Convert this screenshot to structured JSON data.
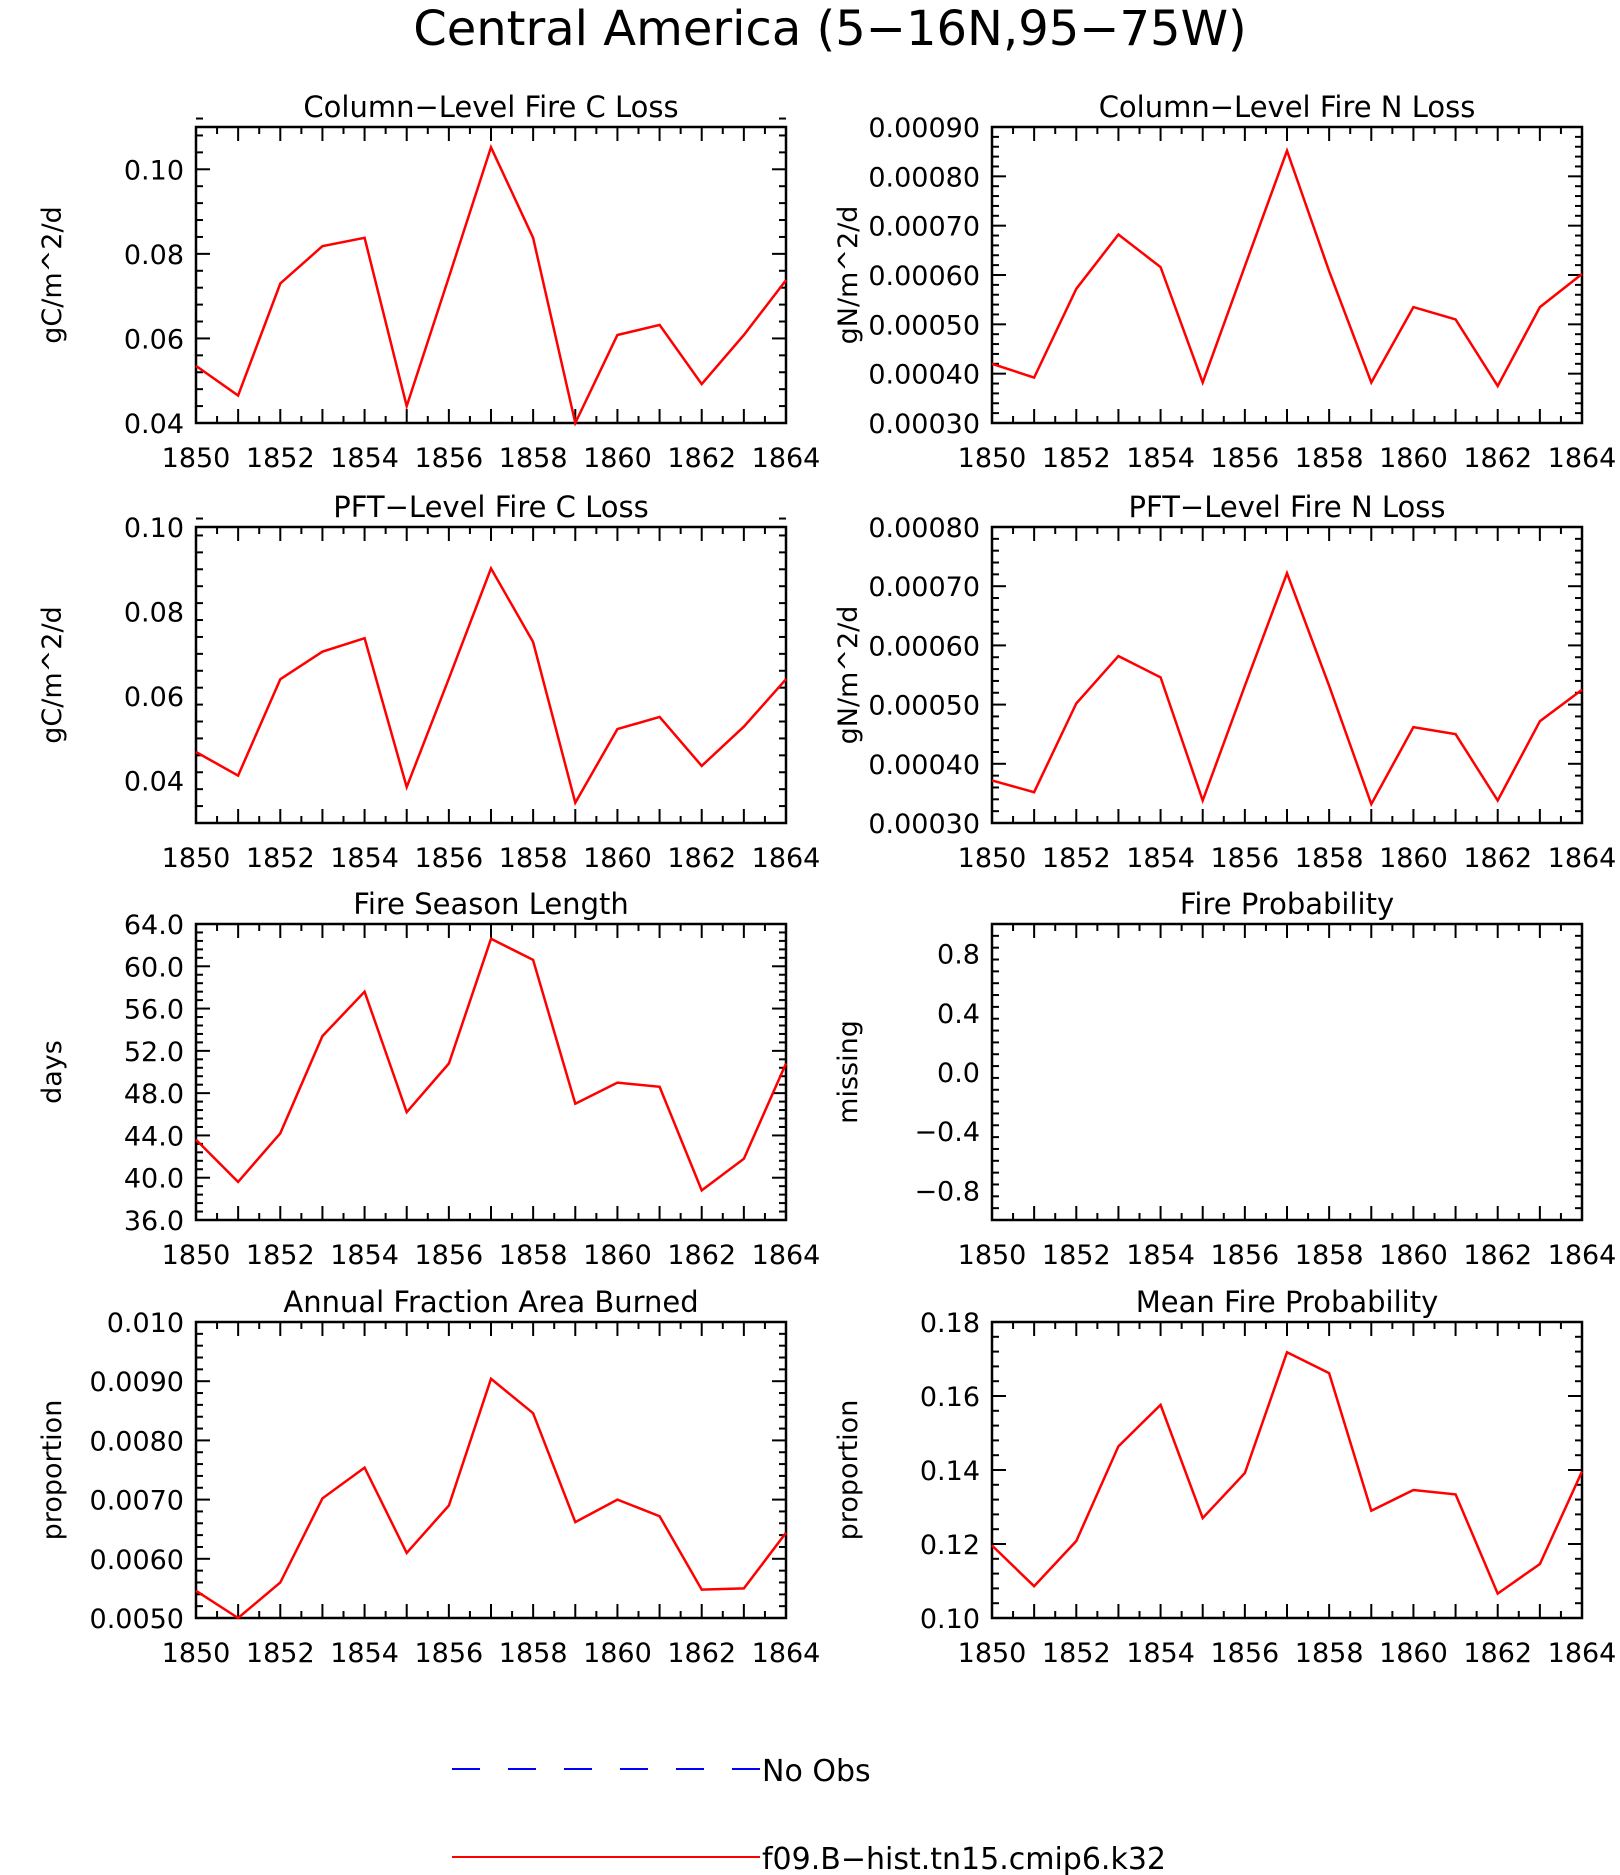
{
  "title": "Central America (5−16N,95−75W)",
  "colors": {
    "model": "#ff0000",
    "obs": "#0000ff"
  },
  "legend": {
    "obs_label": "No Obs",
    "model_label": "f09.B−hist.tn15.cmip6.k32"
  },
  "chart_data": [
    {
      "type": "line",
      "title": "Column−Level Fire C Loss",
      "ylabel": "gC/m^2/d",
      "x": [
        1850,
        1851,
        1852,
        1853,
        1854,
        1855,
        1856,
        1857,
        1858,
        1859,
        1860,
        1861,
        1862,
        1863,
        1864
      ],
      "xlim": [
        1850,
        1864
      ],
      "xticks": [
        "1850",
        "1852",
        "1854",
        "1856",
        "1858",
        "1860",
        "1862",
        "1864"
      ],
      "ylim": [
        0.04,
        0.11
      ],
      "yticks": [
        "0.04",
        "0.06",
        "0.08",
        "0.10"
      ],
      "series": [
        {
          "name": "f09.B−hist.tn15.cmip6.k32",
          "values": [
            0.0535,
            0.0465,
            0.073,
            0.0818,
            0.0838,
            0.044,
            0.0745,
            0.1052,
            0.0838,
            0.04,
            0.0608,
            0.0632,
            0.0492,
            0.0608,
            0.0738
          ]
        }
      ]
    },
    {
      "type": "line",
      "title": "Column−Level Fire N Loss",
      "ylabel": "gN/m^2/d",
      "x": [
        1850,
        1851,
        1852,
        1853,
        1854,
        1855,
        1856,
        1857,
        1858,
        1859,
        1860,
        1861,
        1862,
        1863,
        1864
      ],
      "xlim": [
        1850,
        1864
      ],
      "xticks": [
        "1850",
        "1852",
        "1854",
        "1856",
        "1858",
        "1860",
        "1862",
        "1864"
      ],
      "ylim": [
        0.0003,
        0.0009
      ],
      "yticks": [
        "0.00030",
        "0.00040",
        "0.00050",
        "0.00060",
        "0.00070",
        "0.00080",
        "0.00090"
      ],
      "series": [
        {
          "name": "f09.B−hist.tn15.cmip6.k32",
          "values": [
            0.00042,
            0.000392,
            0.000572,
            0.000682,
            0.000616,
            0.000382,
            0.000618,
            0.000852,
            0.000608,
            0.000382,
            0.000535,
            0.00051,
            0.000375,
            0.000535,
            0.000602
          ]
        }
      ]
    },
    {
      "type": "line",
      "title": "PFT−Level Fire C Loss",
      "ylabel": "gC/m^2/d",
      "x": [
        1850,
        1851,
        1852,
        1853,
        1854,
        1855,
        1856,
        1857,
        1858,
        1859,
        1860,
        1861,
        1862,
        1863,
        1864
      ],
      "xlim": [
        1850,
        1864
      ],
      "xticks": [
        "1850",
        "1852",
        "1854",
        "1856",
        "1858",
        "1860",
        "1862",
        "1864"
      ],
      "ylim": [
        0.03,
        0.1
      ],
      "yticks": [
        "0.04",
        "0.06",
        "0.08",
        "0.10"
      ],
      "series": [
        {
          "name": "f09.B−hist.tn15.cmip6.k32",
          "values": [
            0.0468,
            0.0412,
            0.064,
            0.0705,
            0.0737,
            0.0385,
            0.0642,
            0.0902,
            0.0728,
            0.0348,
            0.0522,
            0.0551,
            0.0435,
            0.0528,
            0.064
          ]
        }
      ]
    },
    {
      "type": "line",
      "title": "PFT−Level Fire N Loss",
      "ylabel": "gN/m^2/d",
      "x": [
        1850,
        1851,
        1852,
        1853,
        1854,
        1855,
        1856,
        1857,
        1858,
        1859,
        1860,
        1861,
        1862,
        1863,
        1864
      ],
      "xlim": [
        1850,
        1864
      ],
      "xticks": [
        "1850",
        "1852",
        "1854",
        "1856",
        "1858",
        "1860",
        "1862",
        "1864"
      ],
      "ylim": [
        0.0003,
        0.0008
      ],
      "yticks": [
        "0.00030",
        "0.00040",
        "0.00050",
        "0.00060",
        "0.00070",
        "0.00080"
      ],
      "series": [
        {
          "name": "f09.B−hist.tn15.cmip6.k32",
          "values": [
            0.000372,
            0.000352,
            0.000502,
            0.000582,
            0.000546,
            0.000338,
            0.000532,
            0.000722,
            0.000532,
            0.000332,
            0.000462,
            0.00045,
            0.000338,
            0.000472,
            0.000525
          ]
        }
      ]
    },
    {
      "type": "line",
      "title": "Fire Season Length",
      "ylabel": "days",
      "x": [
        1850,
        1851,
        1852,
        1853,
        1854,
        1855,
        1856,
        1857,
        1858,
        1859,
        1860,
        1861,
        1862,
        1863,
        1864
      ],
      "xlim": [
        1850,
        1864
      ],
      "xticks": [
        "1850",
        "1852",
        "1854",
        "1856",
        "1858",
        "1860",
        "1862",
        "1864"
      ],
      "ylim": [
        36,
        64
      ],
      "yticks": [
        "36.0",
        "40.0",
        "44.0",
        "48.0",
        "52.0",
        "56.0",
        "60.0",
        "64.0"
      ],
      "series": [
        {
          "name": "f09.B−hist.tn15.cmip6.k32",
          "values": [
            43.6,
            39.6,
            44.2,
            53.4,
            57.6,
            46.2,
            50.8,
            62.6,
            60.6,
            47.0,
            49.0,
            48.6,
            38.8,
            41.8,
            50.8
          ]
        }
      ]
    },
    {
      "type": "line",
      "title": "Fire Probability",
      "ylabel": "missing",
      "x": [],
      "xlim": [
        1850,
        1864
      ],
      "xticks": [
        "1850",
        "1852",
        "1854",
        "1856",
        "1858",
        "1860",
        "1862",
        "1864"
      ],
      "ylim": [
        -1.0,
        1.0
      ],
      "yticks": [
        "−0.8",
        "−0.4",
        "0.0",
        "0.4",
        "0.8"
      ],
      "series": []
    },
    {
      "type": "line",
      "title": "Annual Fraction Area Burned",
      "ylabel": "proportion",
      "x": [
        1850,
        1851,
        1852,
        1853,
        1854,
        1855,
        1856,
        1857,
        1858,
        1859,
        1860,
        1861,
        1862,
        1863,
        1864
      ],
      "xlim": [
        1850,
        1864
      ],
      "xticks": [
        "1850",
        "1852",
        "1854",
        "1856",
        "1858",
        "1860",
        "1862",
        "1864"
      ],
      "ylim": [
        0.005,
        0.01
      ],
      "yticks": [
        "0.0050",
        "0.0060",
        "0.0070",
        "0.0080",
        "0.0090",
        "0.010"
      ],
      "series": [
        {
          "name": "f09.B−hist.tn15.cmip6.k32",
          "values": [
            0.00546,
            0.005,
            0.0056,
            0.00702,
            0.00754,
            0.0061,
            0.0069,
            0.00904,
            0.00846,
            0.00662,
            0.007,
            0.00672,
            0.00548,
            0.0055,
            0.00644
          ]
        }
      ]
    },
    {
      "type": "line",
      "title": "Mean Fire Probability",
      "ylabel": "proportion",
      "x": [
        1850,
        1851,
        1852,
        1853,
        1854,
        1855,
        1856,
        1857,
        1858,
        1859,
        1860,
        1861,
        1862,
        1863,
        1864
      ],
      "xlim": [
        1850,
        1864
      ],
      "xticks": [
        "1850",
        "1852",
        "1854",
        "1856",
        "1858",
        "1860",
        "1862",
        "1864"
      ],
      "ylim": [
        0.1,
        0.18
      ],
      "yticks": [
        "0.10",
        "0.12",
        "0.14",
        "0.16",
        "0.18"
      ],
      "series": [
        {
          "name": "f09.B−hist.tn15.cmip6.k32",
          "values": [
            0.1196,
            0.1086,
            0.1208,
            0.1464,
            0.1576,
            0.127,
            0.1392,
            0.1718,
            0.1662,
            0.129,
            0.1346,
            0.1334,
            0.1066,
            0.1146,
            0.1396
          ]
        }
      ]
    }
  ]
}
